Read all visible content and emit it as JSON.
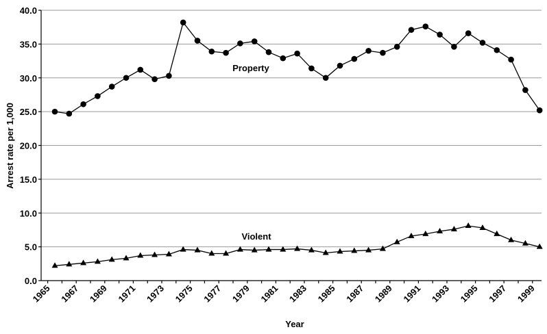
{
  "chart_data": {
    "type": "line",
    "x_label": "Year",
    "y_label": "Arrest rate per 1,000",
    "categories": [
      "1965",
      null,
      "1967",
      null,
      "1969",
      null,
      "1971",
      null,
      "1973",
      null,
      "1975",
      null,
      "1977",
      null,
      "1979",
      null,
      "1981",
      null,
      "1983",
      null,
      "1985",
      null,
      "1987",
      null,
      "1989",
      null,
      "1991",
      null,
      "1993",
      null,
      "1995",
      null,
      "1997",
      null,
      "1999"
    ],
    "series": [
      {
        "name": "Property",
        "color": "#000000",
        "marker": "circle",
        "values": [
          25.0,
          24.7,
          26.1,
          27.3,
          28.7,
          30.0,
          31.2,
          29.8,
          30.3,
          38.2,
          35.5,
          33.9,
          33.7,
          35.1,
          35.4,
          33.8,
          32.9,
          33.6,
          31.4,
          30.0,
          31.8,
          32.8,
          34.0,
          33.7,
          34.6,
          37.1,
          37.6,
          36.4,
          34.6,
          36.6,
          35.2,
          34.1,
          32.7,
          28.2,
          25.2
        ]
      },
      {
        "name": "Violent",
        "color": "#000000",
        "marker": "triangle",
        "values": [
          2.2,
          2.4,
          2.6,
          2.8,
          3.1,
          3.3,
          3.7,
          3.8,
          3.9,
          4.6,
          4.5,
          4.0,
          4.0,
          4.6,
          4.5,
          4.6,
          4.6,
          4.7,
          4.5,
          4.1,
          4.3,
          4.4,
          4.5,
          4.7,
          5.7,
          6.6,
          6.9,
          7.3,
          7.6,
          8.1,
          7.8,
          6.9,
          6.0,
          5.5,
          5.0
        ]
      }
    ],
    "ylim": [
      0,
      40
    ],
    "yticks": [
      {
        "value": 0,
        "label": "0.0"
      },
      {
        "value": 5,
        "label": "5.0"
      },
      {
        "value": 10,
        "label": "10.0"
      },
      {
        "value": 15,
        "label": "15.0"
      },
      {
        "value": 20,
        "label": "20.0"
      },
      {
        "value": 25,
        "label": "25.0"
      },
      {
        "value": 30,
        "label": "30.0"
      },
      {
        "value": 35,
        "label": "35.0"
      },
      {
        "value": 40,
        "label": "40.0"
      }
    ],
    "grid": true
  }
}
